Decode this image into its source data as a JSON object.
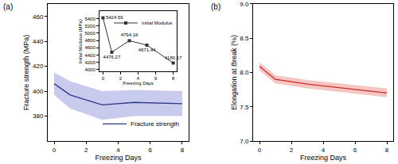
{
  "chart_data": [
    {
      "panel": "(a)",
      "type": "line",
      "xlabel": "Freezing Days",
      "ylabel": "Fracture strength (MPa)",
      "x": [
        0,
        1,
        3,
        5,
        8
      ],
      "series": [
        {
          "name": "Fracture strength",
          "color": "#2e3a87",
          "band_color": "#c8cbee",
          "values": [
            406,
            397,
            389,
            391,
            390
          ],
          "upper": [
            415,
            408,
            400,
            401,
            400
          ],
          "lower": [
            397,
            386,
            377,
            380,
            380
          ]
        }
      ],
      "xlim": [
        -0.4,
        8.4
      ],
      "xticks": [
        0,
        2,
        4,
        6,
        8
      ],
      "ylim": [
        360,
        470
      ],
      "yticks": [
        380,
        400,
        420,
        440,
        460
      ],
      "grid": false,
      "legend": "lower right"
    },
    {
      "type": "line",
      "xlabel": "Freezing Days",
      "ylabel": "Initial Modulus (MPa)",
      "x": [
        0,
        1,
        3,
        5,
        8
      ],
      "series": [
        {
          "name": "Initial Modulus",
          "color": "#333333",
          "marker": "square",
          "values": [
            5424.59,
            4476.27,
            4794.16,
            4671.44,
            4180.17
          ]
        }
      ],
      "xlim": [
        -0.4,
        8.4
      ],
      "xticks": [
        0,
        2,
        4,
        6,
        8
      ],
      "ylim": [
        3950,
        5600
      ],
      "yticks": [
        4000,
        4200,
        4400,
        4600,
        4800,
        5000,
        5200,
        5400
      ],
      "grid": false,
      "legend": "upper right",
      "data_labels": true
    },
    {
      "panel": "(b)",
      "type": "line",
      "xlabel": "Freezing Days",
      "ylabel": "Elongation at Break (%)",
      "x": [
        0,
        1,
        3,
        5,
        8
      ],
      "series": [
        {
          "name": "Elongation at Break",
          "color": "#cc2a2a",
          "band_color": "#f6c6c2",
          "values": [
            8.09,
            7.9,
            7.83,
            7.78,
            7.7
          ],
          "upper": [
            8.15,
            7.96,
            7.89,
            7.84,
            7.77
          ],
          "lower": [
            8.03,
            7.84,
            7.77,
            7.72,
            7.64
          ]
        }
      ],
      "xlim": [
        -0.4,
        8.4
      ],
      "xticks": [
        0,
        2,
        4,
        6,
        8
      ],
      "ylim": [
        7.0,
        9.0
      ],
      "yticks": [
        {
          "value": 7.0,
          "label": "7.0"
        },
        {
          "value": 7.5,
          "label": "7.5"
        },
        {
          "value": 8.0,
          "label": "8.0"
        },
        {
          "value": 8.5,
          "label": "8.5"
        },
        {
          "value": 9.0,
          "label": "9.0"
        }
      ],
      "grid": false
    }
  ]
}
